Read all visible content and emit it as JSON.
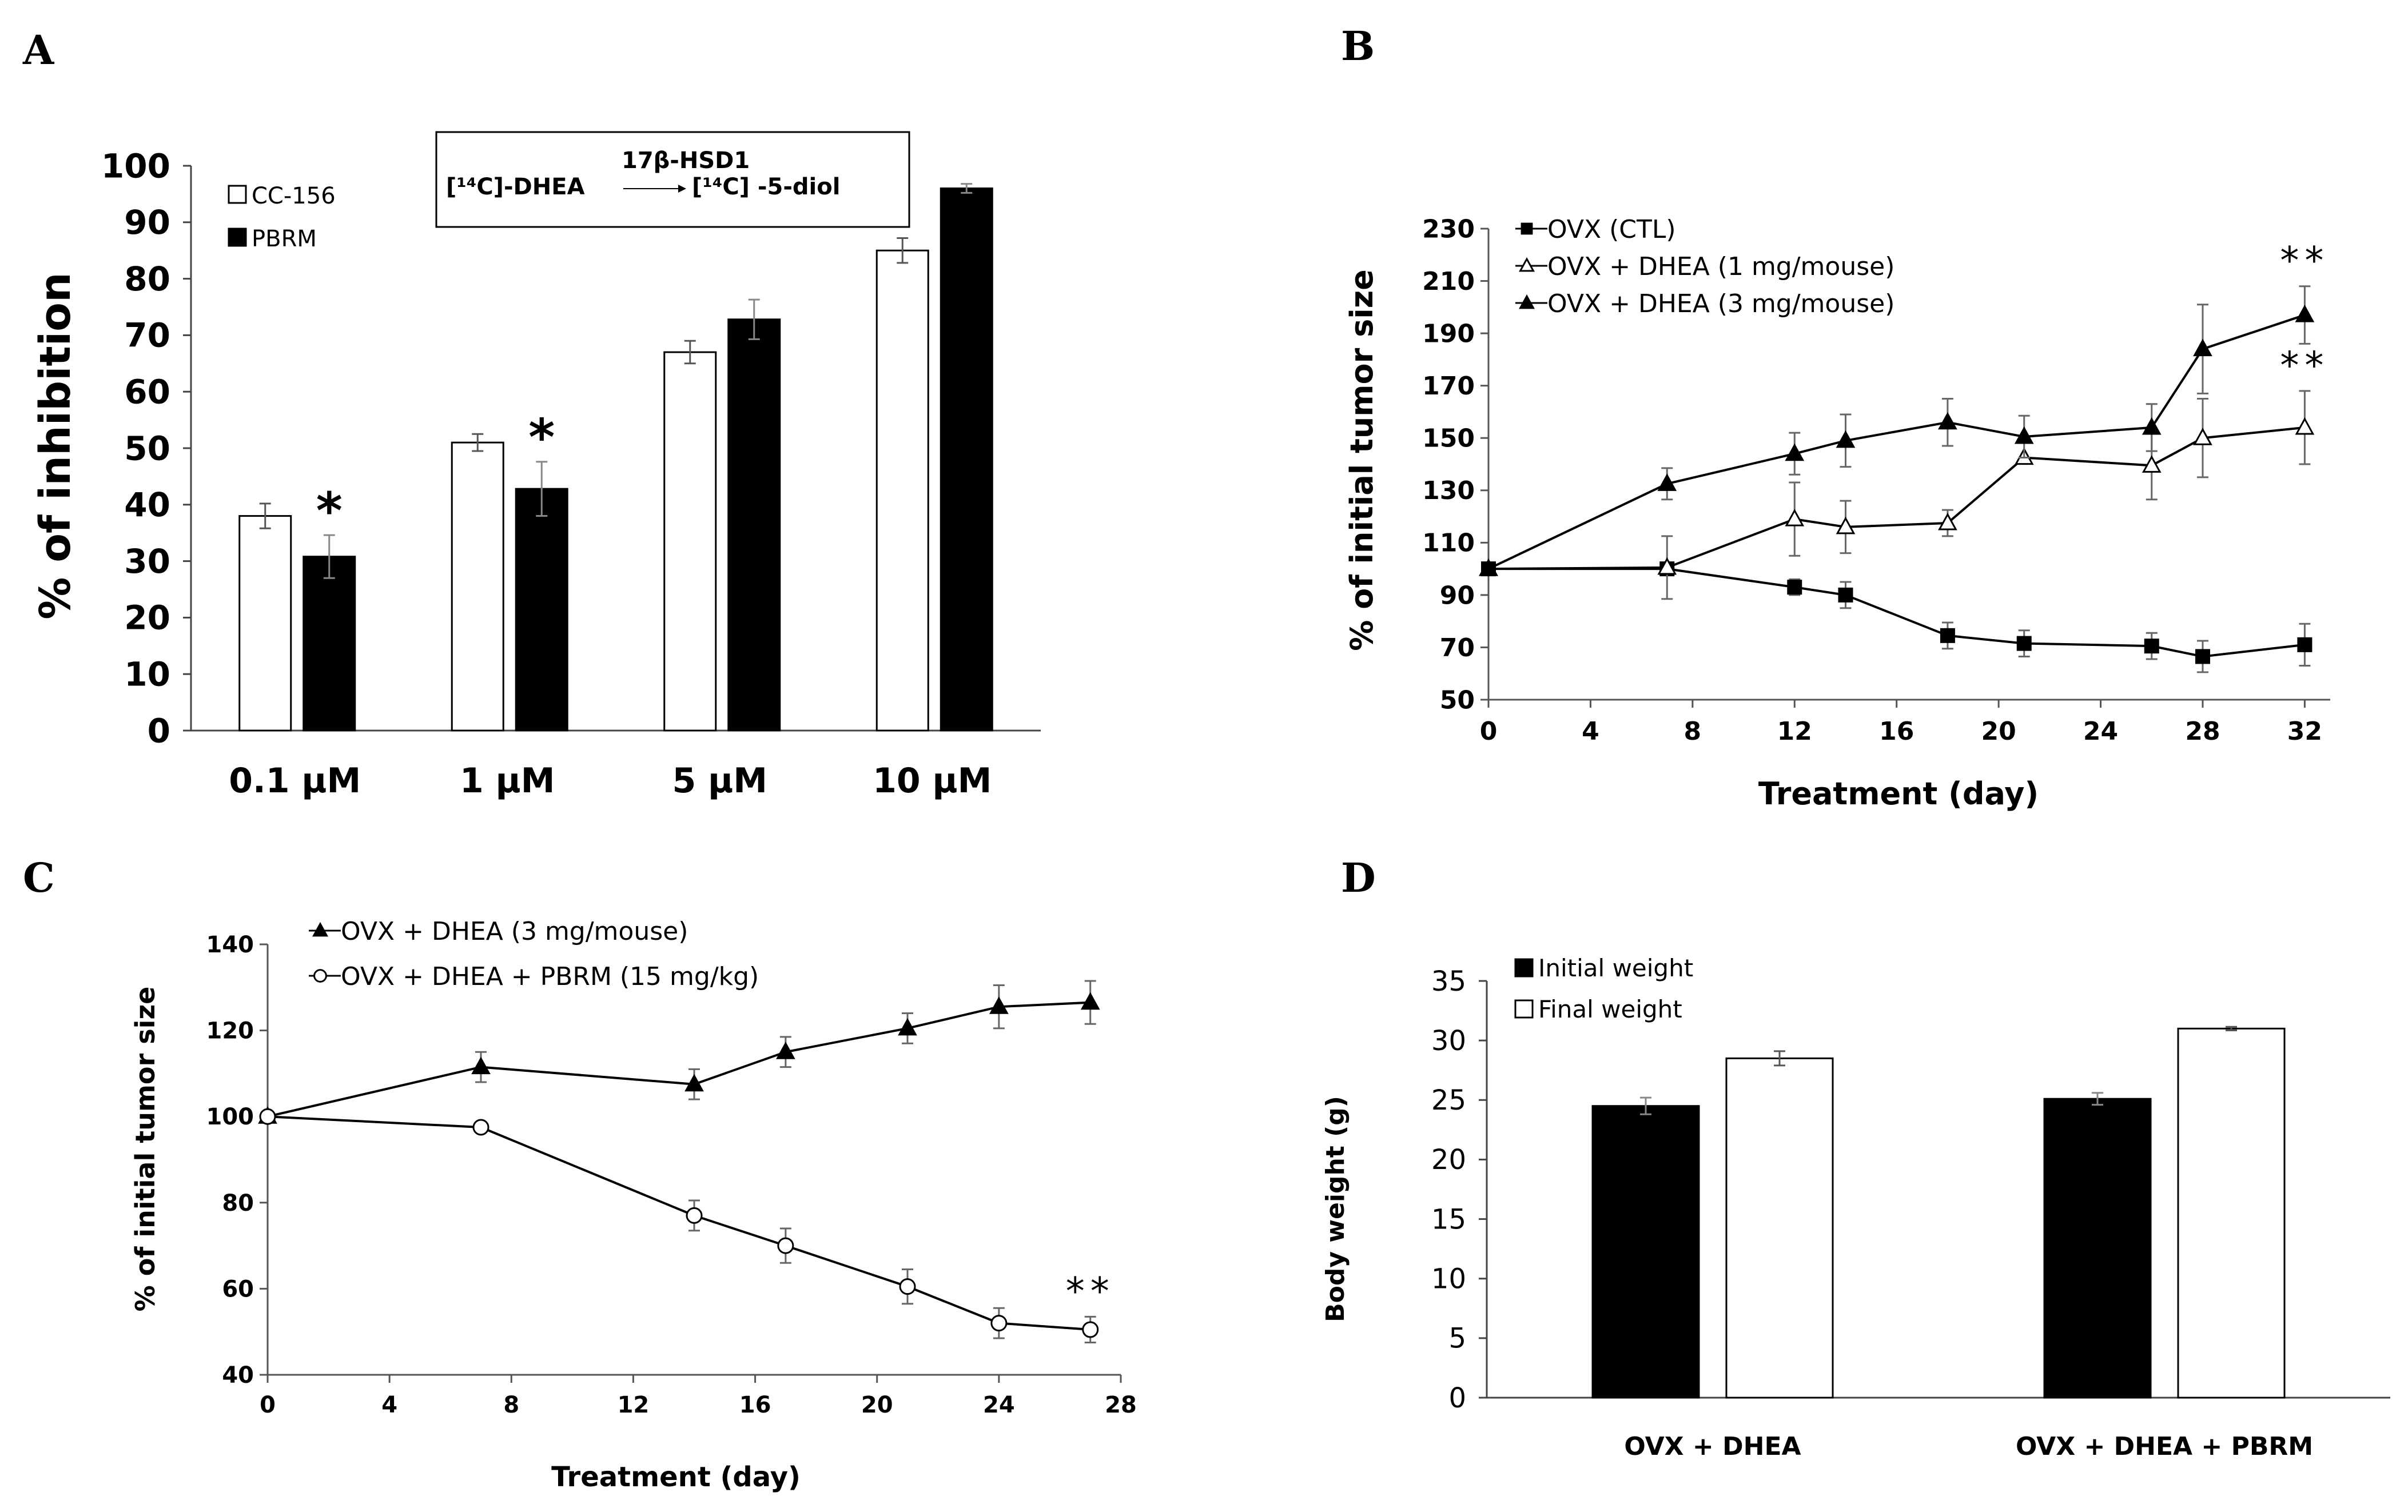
{
  "panels": [
    {
      "id": "A",
      "letter": "A",
      "type": "bar",
      "ylabel": "% of inhibition",
      "ylim": [
        0,
        100
      ],
      "yticks": [
        0,
        10,
        20,
        30,
        40,
        50,
        60,
        70,
        80,
        90,
        100
      ],
      "categories": [
        "0.1 µM",
        "1 µM",
        "5 µM",
        "10 µM"
      ],
      "series": [
        {
          "name": "CC-156",
          "fill": "#ffffff",
          "values": [
            38,
            51,
            67,
            85
          ],
          "errors": [
            2.2,
            1.5,
            2.0,
            2.2
          ],
          "sig": [
            "",
            "",
            "",
            ""
          ]
        },
        {
          "name": "PBRM",
          "fill": "#000000",
          "values": [
            30.8,
            42.8,
            72.8,
            96
          ],
          "errors": [
            3.8,
            4.8,
            3.5,
            0.8
          ],
          "sig": [
            "*",
            "*",
            "",
            ""
          ]
        }
      ],
      "reaction": {
        "substrate": "[14C]-DHEA",
        "enzyme": "17β-HSD1",
        "product": "[14C] -5-diol"
      }
    },
    {
      "id": "B",
      "letter": "B",
      "type": "line",
      "xlabel": "Treatment (day)",
      "ylabel": "% of initial tumor size",
      "xlim": [
        0,
        33
      ],
      "ylim": [
        50,
        230
      ],
      "xticks": [
        0,
        4,
        8,
        12,
        16,
        20,
        24,
        28,
        32
      ],
      "yticks": [
        50,
        70,
        90,
        110,
        130,
        150,
        170,
        190,
        210,
        230
      ],
      "series": [
        {
          "name": "OVX (CTL)",
          "marker": "square",
          "x": [
            0,
            7,
            12,
            14,
            18,
            21,
            26,
            28,
            32
          ],
          "y": [
            100,
            100,
            93,
            90,
            74.5,
            71.5,
            70.5,
            66.5,
            71
          ],
          "errors": [
            0,
            0,
            3,
            5,
            5,
            5,
            5,
            6,
            8
          ],
          "sig_text": ""
        },
        {
          "name": "OVX + DHEA (1 mg/mouse)",
          "marker": "triangle-open",
          "x": [
            0,
            7,
            12,
            14,
            18,
            21,
            26,
            28,
            32
          ],
          "y": [
            100,
            100.5,
            119,
            116,
            117.5,
            142.5,
            139.5,
            150,
            154
          ],
          "errors": [
            0,
            12,
            14,
            10,
            5,
            0,
            13,
            15,
            14
          ],
          "sig_text": "**"
        },
        {
          "name": "OVX + DHEA (3 mg/mouse)",
          "marker": "triangle-filled",
          "x": [
            0,
            7,
            12,
            14,
            18,
            21,
            26,
            28,
            32
          ],
          "y": [
            100,
            132.5,
            144,
            149,
            156,
            150.5,
            154,
            184,
            197
          ],
          "errors": [
            0,
            6,
            8,
            10,
            9,
            8,
            9,
            17,
            11
          ],
          "sig_text": "**"
        }
      ]
    },
    {
      "id": "C",
      "letter": "C",
      "type": "line",
      "xlabel": "Treatment (day)",
      "ylabel": "% of initial tumor size",
      "xlim": [
        0,
        28
      ],
      "ylim": [
        40,
        140
      ],
      "xticks": [
        0,
        4,
        8,
        12,
        16,
        20,
        24,
        28
      ],
      "yticks": [
        40,
        60,
        80,
        100,
        120,
        140
      ],
      "series": [
        {
          "name": "OVX + DHEA (3 mg/mouse)",
          "marker": "triangle-filled",
          "x": [
            0,
            7,
            14,
            17,
            21,
            24,
            27
          ],
          "y": [
            100,
            111.5,
            107.5,
            115,
            120.5,
            125.5,
            126.5
          ],
          "errors": [
            0,
            3.5,
            3.5,
            3.5,
            3.5,
            5,
            5
          ],
          "sig_text": ""
        },
        {
          "name": "OVX + DHEA + PBRM (15 mg/kg)",
          "marker": "circle-open",
          "x": [
            0,
            7,
            14,
            17,
            21,
            24,
            27
          ],
          "y": [
            100,
            97.5,
            77,
            70,
            60.5,
            52,
            50.5
          ],
          "errors": [
            0,
            0,
            3.5,
            4,
            4,
            3.5,
            3
          ],
          "sig_text": "**"
        }
      ]
    },
    {
      "id": "D",
      "letter": "D",
      "type": "bar",
      "ylabel": "Body weight (g)",
      "ylim": [
        0,
        35
      ],
      "yticks": [
        0,
        5,
        10,
        15,
        20,
        25,
        30,
        35
      ],
      "categories": [
        "OVX + DHEA",
        "OVX + DHEA + PBRM"
      ],
      "series": [
        {
          "name": "Initial weight",
          "fill": "#000000",
          "values": [
            24.5,
            25.1
          ],
          "errors": [
            0.7,
            0.5
          ],
          "sig": [
            "",
            ""
          ]
        },
        {
          "name": "Final weight",
          "fill": "#ffffff",
          "values": [
            28.5,
            31
          ],
          "errors": [
            0.6,
            0.15
          ],
          "sig": [
            "",
            ""
          ]
        }
      ]
    }
  ]
}
